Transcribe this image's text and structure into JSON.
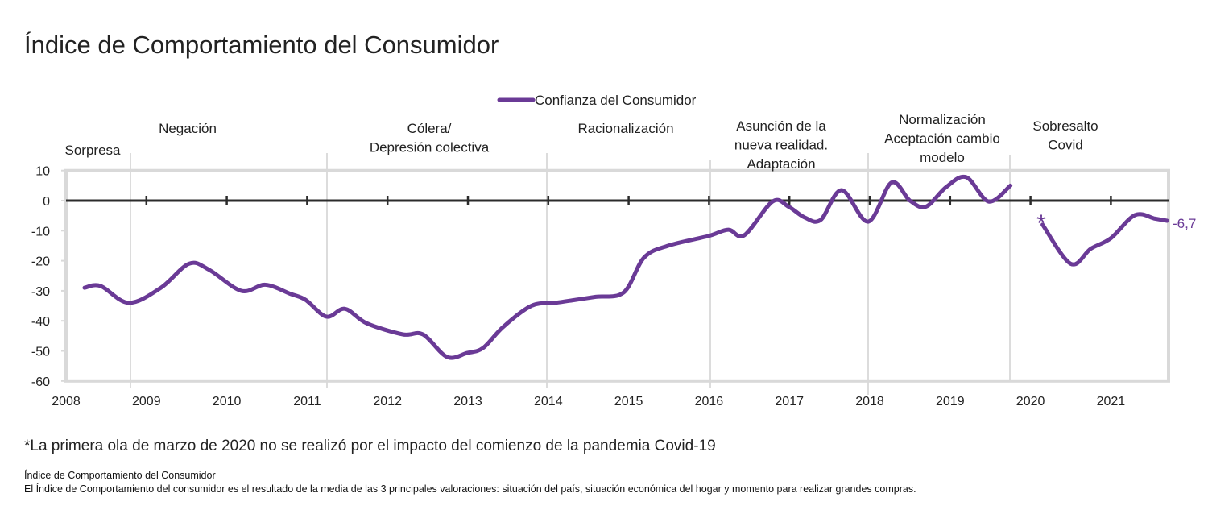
{
  "title": "Índice de Comportamiento del Consumidor",
  "footnote": "*La primera ola de marzo de 2020 no se realizó por el impacto del comienzo de la pandemia Covid-19",
  "source": {
    "title": "Índice de Comportamiento del Consumidor",
    "text": "El Índice de Comportamiento del consumidor es el resultado de la media de las 3 principales valoraciones: situación del país, situación económica del hogar y momento para realizar grandes compras."
  },
  "chart_data": {
    "type": "line",
    "title": "Índice de Comportamiento del Consumidor",
    "xlabel": "",
    "ylabel": "",
    "xlim": [
      2008,
      2021.7
    ],
    "ylim": [
      -60,
      10
    ],
    "x_ticks": [
      "2008",
      "2009",
      "2010",
      "2011",
      "2012",
      "2013",
      "2014",
      "2015",
      "2016",
      "2017",
      "2018",
      "2019",
      "2020",
      "2021"
    ],
    "y_ticks": [
      "10",
      "0",
      "-10",
      "-20",
      "-30",
      "-40",
      "-50",
      "-60"
    ],
    "grid": false,
    "legend": {
      "position": "top",
      "entries": [
        "Confianza del Consumidor"
      ]
    },
    "colors": {
      "series": "#6a3a96",
      "zero_line": "#2b2b2b",
      "frame": "#d9d9d9",
      "phase_lines": "#d0d0d0"
    },
    "series": [
      {
        "name": "Confianza del Consumidor",
        "segments": [
          [
            [
              2008.23,
              -29
            ],
            [
              2008.43,
              -28.4
            ],
            [
              2008.78,
              -34
            ],
            [
              2009.18,
              -29
            ],
            [
              2009.53,
              -21
            ],
            [
              2009.78,
              -23
            ],
            [
              2010.18,
              -30
            ],
            [
              2010.48,
              -28
            ],
            [
              2010.79,
              -31
            ],
            [
              2010.98,
              -33
            ],
            [
              2011.24,
              -38.6
            ],
            [
              2011.47,
              -36
            ],
            [
              2011.74,
              -40.8
            ],
            [
              2012.19,
              -44.5
            ],
            [
              2012.44,
              -44.5
            ],
            [
              2012.74,
              -52
            ],
            [
              2012.99,
              -50.7
            ],
            [
              2013.19,
              -49
            ],
            [
              2013.44,
              -42
            ],
            [
              2013.79,
              -35
            ],
            [
              2014.09,
              -34
            ],
            [
              2014.34,
              -33
            ],
            [
              2014.59,
              -32
            ],
            [
              2014.94,
              -30.5
            ],
            [
              2015.19,
              -19
            ],
            [
              2015.49,
              -15
            ],
            [
              2015.99,
              -11.8
            ],
            [
              2016.24,
              -9.7
            ],
            [
              2016.44,
              -11.5
            ],
            [
              2016.79,
              -0.3
            ],
            [
              2016.99,
              -2
            ],
            [
              2017.19,
              -5.6
            ],
            [
              2017.39,
              -6.4
            ],
            [
              2017.65,
              3.5
            ],
            [
              2017.98,
              -7
            ],
            [
              2018.27,
              6
            ],
            [
              2018.5,
              0
            ],
            [
              2018.7,
              -2
            ],
            [
              2018.95,
              4.5
            ],
            [
              2019.2,
              7.8
            ],
            [
              2019.48,
              -0.3
            ],
            [
              2019.75,
              5
            ]
          ],
          [
            [
              2020.15,
              -8
            ],
            [
              2020.5,
              -21
            ],
            [
              2020.75,
              -16
            ],
            [
              2021.0,
              -12.5
            ],
            [
              2021.3,
              -4.8
            ],
            [
              2021.55,
              -6
            ],
            [
              2021.7,
              -6.7
            ]
          ]
        ]
      }
    ],
    "annotations": {
      "last_value_label": "-6,7",
      "missing_marker": "*",
      "phases": [
        {
          "lines": [
            "Sorpresa"
          ]
        },
        {
          "lines": [
            "Negación"
          ]
        },
        {
          "lines": [
            "Cólera/",
            "Depresión colectiva"
          ]
        },
        {
          "lines": [
            "Racionalización"
          ]
        },
        {
          "lines": [
            "Asunción de la",
            "nueva realidad.",
            "Adaptación"
          ]
        },
        {
          "lines": [
            "Normalización",
            "Aceptación cambio",
            "modelo"
          ]
        },
        {
          "lines": [
            "Sobresalto",
            "Covid"
          ]
        }
      ]
    }
  }
}
